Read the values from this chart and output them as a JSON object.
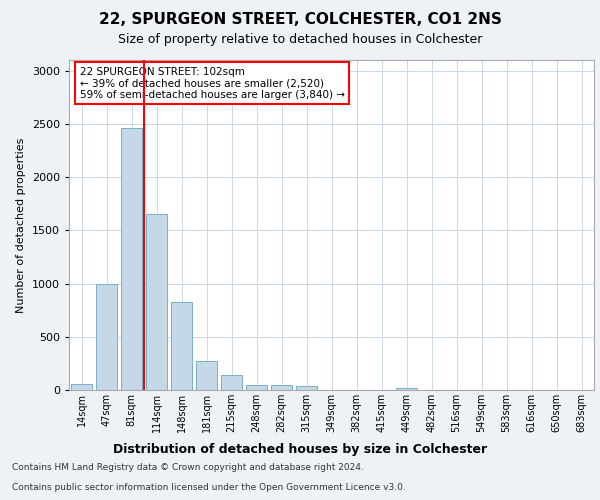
{
  "title1": "22, SPURGEON STREET, COLCHESTER, CO1 2NS",
  "title2": "Size of property relative to detached houses in Colchester",
  "xlabel": "Distribution of detached houses by size in Colchester",
  "ylabel": "Number of detached properties",
  "categories": [
    "14sqm",
    "47sqm",
    "81sqm",
    "114sqm",
    "148sqm",
    "181sqm",
    "215sqm",
    "248sqm",
    "282sqm",
    "315sqm",
    "349sqm",
    "382sqm",
    "415sqm",
    "449sqm",
    "482sqm",
    "516sqm",
    "549sqm",
    "583sqm",
    "616sqm",
    "650sqm",
    "683sqm"
  ],
  "values": [
    55,
    1000,
    2460,
    1650,
    830,
    275,
    140,
    45,
    45,
    40,
    0,
    0,
    0,
    20,
    0,
    0,
    0,
    0,
    0,
    0,
    0
  ],
  "bar_color": "#c5d8e8",
  "bar_edge_color": "#7aafc8",
  "vline_x": 2.5,
  "vline_color": "red",
  "annotation_text": "22 SPURGEON STREET: 102sqm\n← 39% of detached houses are smaller (2,520)\n59% of semi-detached houses are larger (3,840) →",
  "annotation_box_color": "white",
  "annotation_box_edge_color": "red",
  "ylim": [
    0,
    3100
  ],
  "yticks": [
    0,
    500,
    1000,
    1500,
    2000,
    2500,
    3000
  ],
  "footer1": "Contains HM Land Registry data © Crown copyright and database right 2024.",
  "footer2": "Contains public sector information licensed under the Open Government Licence v3.0.",
  "background_color": "#eef2f7",
  "plot_background": "#ffffff",
  "grid_color": "#c8d8e8",
  "title1_fontsize": 11,
  "title2_fontsize": 9,
  "xlabel_fontsize": 9,
  "ylabel_fontsize": 8,
  "tick_fontsize": 7,
  "footer_fontsize": 6.5,
  "annotation_fontsize": 7.5
}
